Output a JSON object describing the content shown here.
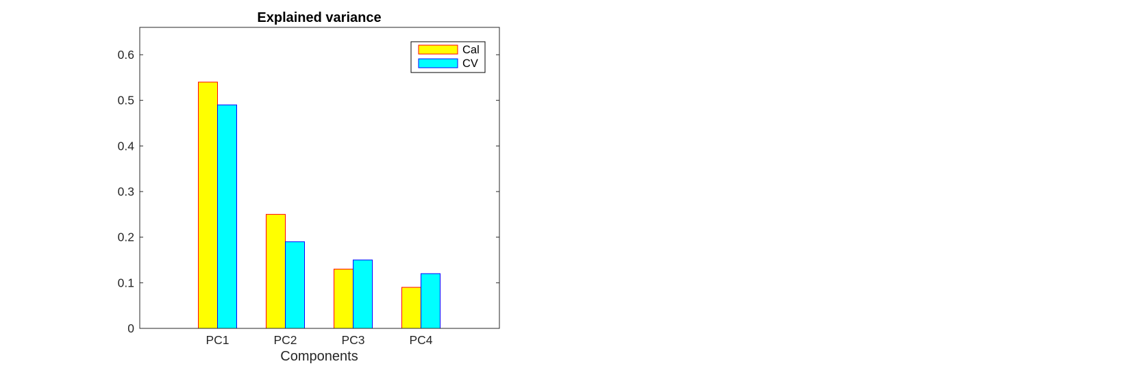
{
  "chart_data": {
    "type": "bar",
    "title": "Explained variance",
    "xlabel": "Components",
    "ylabel": "",
    "categories": [
      "PC1",
      "PC2",
      "PC3",
      "PC4"
    ],
    "series": [
      {
        "name": "Cal",
        "values": [
          0.54,
          0.25,
          0.13,
          0.09
        ],
        "fill": "#ffff00",
        "edge": "#ff0000"
      },
      {
        "name": "CV",
        "values": [
          0.49,
          0.19,
          0.15,
          0.12
        ],
        "fill": "#00ffff",
        "edge": "#0000ff"
      }
    ],
    "ylim": [
      0,
      0.66
    ],
    "yticks": [
      0,
      0.1,
      0.2,
      0.3,
      0.4,
      0.5,
      0.6
    ],
    "ytick_labels": [
      "0",
      "0.1",
      "0.2",
      "0.3",
      "0.4",
      "0.5",
      "0.6"
    ],
    "grid": false,
    "legend_position": "top-right"
  }
}
